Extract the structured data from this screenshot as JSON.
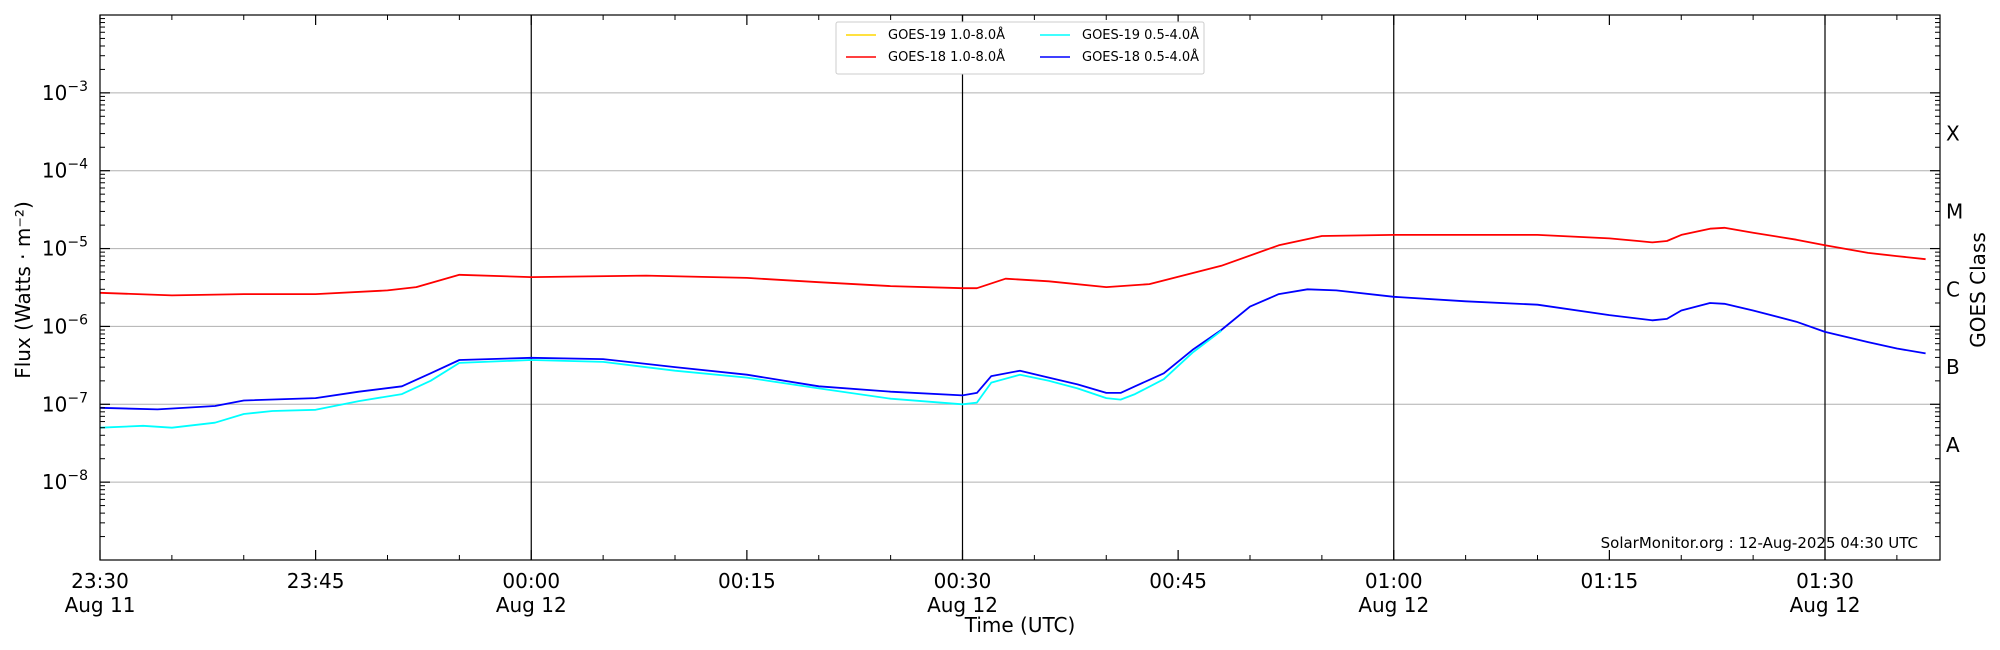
{
  "chart_data": {
    "type": "line",
    "title": "",
    "xlabel": "Time (UTC)",
    "ylabel": "Flux (Watts · m⁻²)",
    "ylabel_right": "GOES Class",
    "yscale": "log",
    "ylim": [
      1e-09,
      0.01
    ],
    "y_ticks": [
      {
        "value": 1e-08,
        "label": "10",
        "exp": "−8"
      },
      {
        "value": 1e-07,
        "label": "10",
        "exp": "−7"
      },
      {
        "value": 1e-06,
        "label": "10",
        "exp": "−6"
      },
      {
        "value": 1e-05,
        "label": "10",
        "exp": "−5"
      },
      {
        "value": 0.0001,
        "label": "10",
        "exp": "−4"
      },
      {
        "value": 0.001,
        "label": "10",
        "exp": "−3"
      }
    ],
    "goes_classes": [
      {
        "label": "A",
        "value": 3e-08
      },
      {
        "label": "B",
        "value": 3e-07
      },
      {
        "label": "C",
        "value": 3e-06
      },
      {
        "label": "M",
        "value": 3e-05
      },
      {
        "label": "X",
        "value": 0.0003
      }
    ],
    "xlim": [
      "23:30",
      "01:38"
    ],
    "x_ticks": [
      {
        "time": "23:30",
        "line1": "23:30",
        "line2": "Aug 11"
      },
      {
        "time": "23:45",
        "line1": "23:45",
        "line2": ""
      },
      {
        "time": "00:00",
        "line1": "00:00",
        "line2": "Aug 12"
      },
      {
        "time": "00:15",
        "line1": "00:15",
        "line2": ""
      },
      {
        "time": "00:30",
        "line1": "00:30",
        "line2": "Aug 12"
      },
      {
        "time": "00:45",
        "line1": "00:45",
        "line2": ""
      },
      {
        "time": "01:00",
        "line1": "01:00",
        "line2": "Aug 12"
      },
      {
        "time": "01:15",
        "line1": "01:15",
        "line2": ""
      },
      {
        "time": "01:30",
        "line1": "01:30",
        "line2": "Aug 12"
      }
    ],
    "vertical_lines": [
      "00:00",
      "00:30",
      "01:00",
      "01:30"
    ],
    "grid": "horizontal",
    "legend_position": "top-center",
    "legend": [
      {
        "name": "GOES-19 1.0-8.0Å",
        "color": "#ffd700"
      },
      {
        "name": "GOES-19 0.5-4.0Å",
        "color": "#00ffff"
      },
      {
        "name": "GOES-18 1.0-8.0Å",
        "color": "#ff0000"
      },
      {
        "name": "GOES-18 0.5-4.0Å",
        "color": "#0000ff"
      }
    ],
    "series": [
      {
        "name": "GOES-18 1.0-8.0Å",
        "color": "#ff0000",
        "x": [
          "23:30",
          "23:35",
          "23:40",
          "23:45",
          "23:50",
          "23:52",
          "23:55",
          "00:00",
          "00:08",
          "00:15",
          "00:20",
          "00:25",
          "00:30",
          "00:31",
          "00:33",
          "00:36",
          "00:40",
          "00:43",
          "00:48",
          "00:52",
          "00:55",
          "01:00",
          "01:05",
          "01:10",
          "01:15",
          "01:17",
          "01:18",
          "01:19",
          "01:20",
          "01:22",
          "01:23",
          "01:25",
          "01:28",
          "01:30",
          "01:33",
          "01:35",
          "01:37"
        ],
        "y": [
          2.7e-06,
          2.5e-06,
          2.6e-06,
          2.6e-06,
          2.9e-06,
          3.2e-06,
          4.6e-06,
          4.3e-06,
          4.5e-06,
          4.2e-06,
          3.7e-06,
          3.3e-06,
          3.1e-06,
          3.1e-06,
          4.1e-06,
          3.8e-06,
          3.2e-06,
          3.5e-06,
          6e-06,
          1.1e-05,
          1.45e-05,
          1.5e-05,
          1.5e-05,
          1.5e-05,
          1.35e-05,
          1.25e-05,
          1.2e-05,
          1.25e-05,
          1.5e-05,
          1.8e-05,
          1.85e-05,
          1.6e-05,
          1.3e-05,
          1.1e-05,
          8.8e-06,
          8e-06,
          7.3e-06
        ]
      },
      {
        "name": "GOES-18 0.5-4.0Å",
        "color": "#0000ff",
        "x": [
          "23:30",
          "23:34",
          "23:38",
          "23:40",
          "23:45",
          "23:48",
          "23:51",
          "23:53",
          "23:55",
          "00:00",
          "00:05",
          "00:10",
          "00:15",
          "00:20",
          "00:25",
          "00:30",
          "00:31",
          "00:32",
          "00:34",
          "00:36",
          "00:38",
          "00:40",
          "00:41",
          "00:42",
          "00:44",
          "00:46",
          "00:48",
          "00:50",
          "00:52",
          "00:54",
          "00:56",
          "01:00",
          "01:05",
          "01:10",
          "01:15",
          "01:18",
          "01:19",
          "01:20",
          "01:22",
          "01:23",
          "01:25",
          "01:28",
          "01:30",
          "01:33",
          "01:35",
          "01:37"
        ],
        "y": [
          9e-08,
          8.6e-08,
          9.5e-08,
          1.12e-07,
          1.2e-07,
          1.45e-07,
          1.7e-07,
          2.5e-07,
          3.7e-07,
          3.95e-07,
          3.8e-07,
          3e-07,
          2.4e-07,
          1.7e-07,
          1.45e-07,
          1.3e-07,
          1.4e-07,
          2.3e-07,
          2.7e-07,
          2.2e-07,
          1.8e-07,
          1.4e-07,
          1.4e-07,
          1.7e-07,
          2.5e-07,
          5e-07,
          9e-07,
          1.8e-06,
          2.6e-06,
          3e-06,
          2.9e-06,
          2.4e-06,
          2.1e-06,
          1.9e-06,
          1.4e-06,
          1.2e-06,
          1.25e-06,
          1.6e-06,
          2e-06,
          1.95e-06,
          1.6e-06,
          1.15e-06,
          8.5e-07,
          6.3e-07,
          5.2e-07,
          4.5e-07
        ]
      },
      {
        "name": "GOES-19 0.5-4.0Å",
        "color": "#00ffff",
        "x": [
          "23:30",
          "23:33",
          "23:35",
          "23:38",
          "23:40",
          "23:42",
          "23:45",
          "23:48",
          "23:51",
          "23:53",
          "23:55",
          "00:00",
          "00:05",
          "00:10",
          "00:15",
          "00:20",
          "00:25",
          "00:30",
          "00:31",
          "00:32",
          "00:34",
          "00:36",
          "00:38",
          "00:40",
          "00:41",
          "00:42",
          "00:44",
          "00:46",
          "00:48"
        ],
        "y": [
          5e-08,
          5.3e-08,
          5e-08,
          5.8e-08,
          7.5e-08,
          8.2e-08,
          8.5e-08,
          1.1e-07,
          1.35e-07,
          2e-07,
          3.4e-07,
          3.7e-07,
          3.5e-07,
          2.7e-07,
          2.2e-07,
          1.6e-07,
          1.18e-07,
          1e-07,
          1.05e-07,
          1.9e-07,
          2.4e-07,
          2e-07,
          1.6e-07,
          1.2e-07,
          1.15e-07,
          1.35e-07,
          2.1e-07,
          4.6e-07,
          8.8e-07
        ]
      }
    ],
    "annotation": "SolarMonitor.org : 12-Aug-2025 04:30 UTC"
  }
}
